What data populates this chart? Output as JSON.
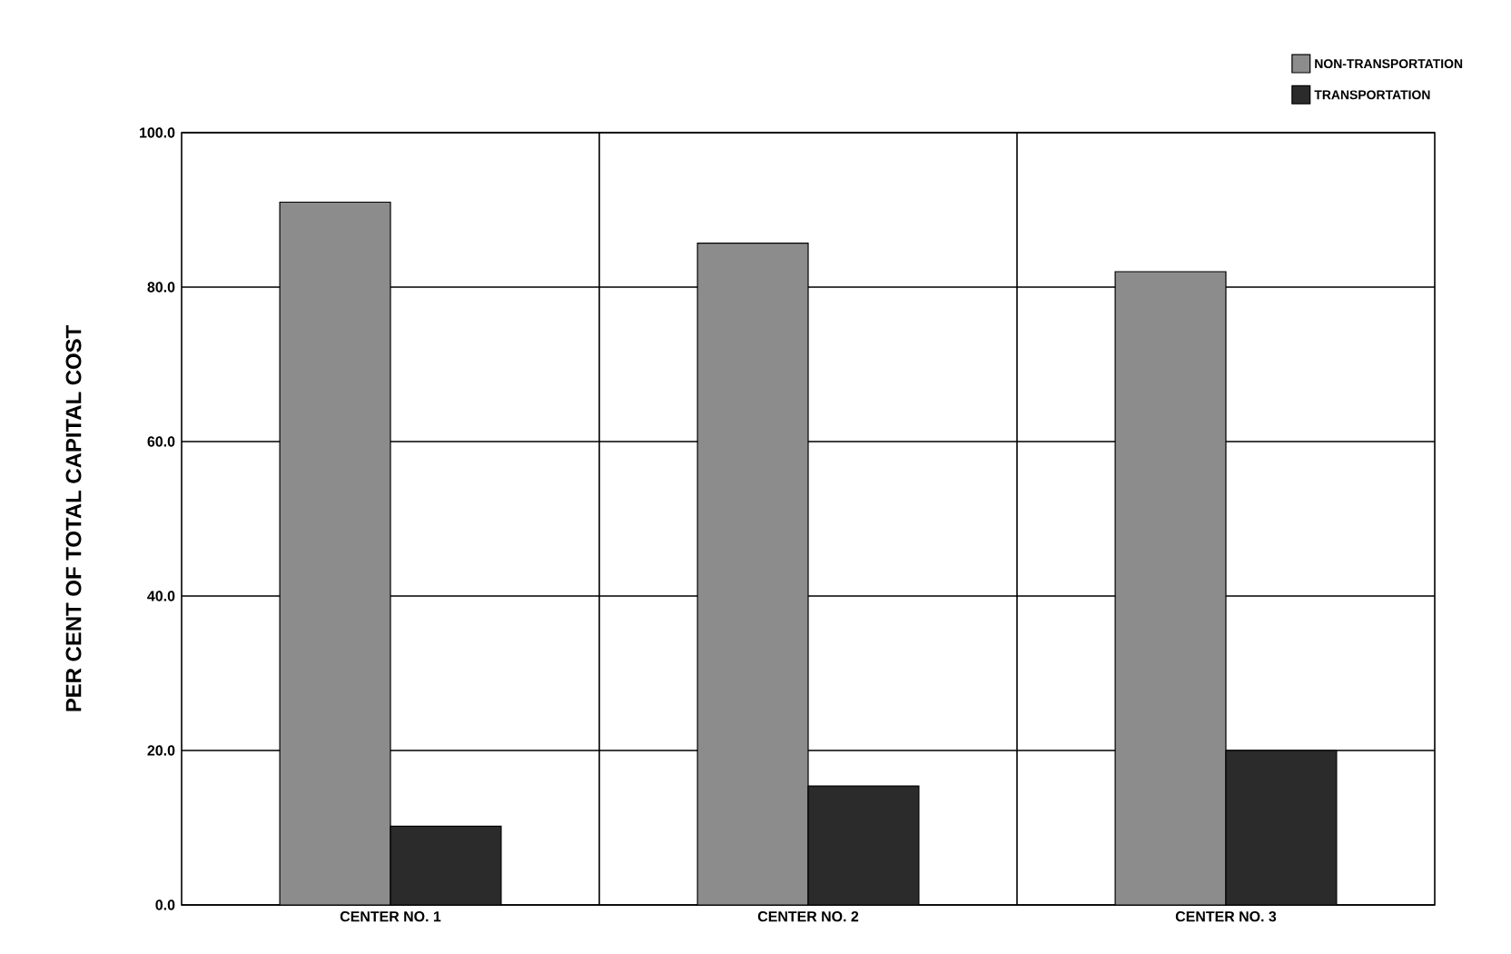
{
  "chart_data": {
    "type": "bar",
    "ylabel": "PER CENT OF TOTAL CAPITAL COST",
    "categories": [
      "CENTER  NO. 1",
      "CENTER  NO. 2",
      "CENTER  NO. 3"
    ],
    "series": [
      {
        "name": "NON-TRANSPORTATION",
        "color": "#8c8c8c",
        "values": [
          91.0,
          85.7,
          82.0
        ]
      },
      {
        "name": "TRANSPORTATION",
        "color": "#2b2b2b",
        "values": [
          10.2,
          15.4,
          20.0
        ]
      }
    ],
    "ylim": [
      0,
      100
    ],
    "yticks": [
      {
        "value": 0,
        "label": "0.0"
      },
      {
        "value": 20,
        "label": "20.0"
      },
      {
        "value": 40,
        "label": "40.0"
      },
      {
        "value": 60,
        "label": "60.0"
      },
      {
        "value": 80,
        "label": "80.0"
      },
      {
        "value": 100,
        "label": "100.0"
      }
    ],
    "grid": "y",
    "legend": "top right"
  }
}
